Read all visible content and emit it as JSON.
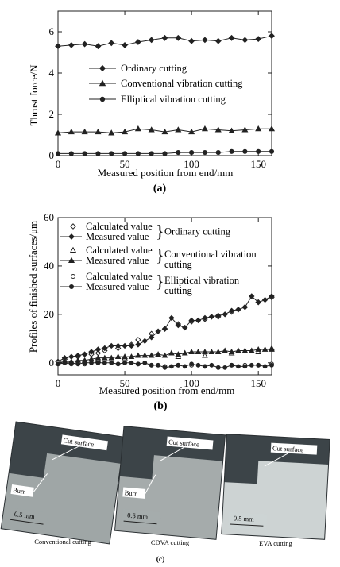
{
  "chart_data": [
    {
      "type": "line",
      "panel_label": "(a)",
      "xlabel": "Measured position from end/mm",
      "ylabel": "Thrust force/N",
      "xlim": [
        0,
        160
      ],
      "ylim": [
        0,
        7
      ],
      "xticks": [
        0,
        50,
        100,
        150
      ],
      "yticks": [
        0,
        2,
        4,
        6
      ],
      "legend_position": "inside-center",
      "series": [
        {
          "name": "Ordinary cutting",
          "marker": "diamond",
          "x": [
            0,
            10,
            20,
            30,
            40,
            50,
            60,
            70,
            80,
            90,
            100,
            110,
            120,
            130,
            140,
            150,
            160
          ],
          "y": [
            5.3,
            5.35,
            5.4,
            5.3,
            5.45,
            5.35,
            5.5,
            5.6,
            5.7,
            5.7,
            5.55,
            5.6,
            5.55,
            5.7,
            5.6,
            5.65,
            5.8
          ]
        },
        {
          "name": "Conventional vibration cutting",
          "marker": "triangle",
          "x": [
            0,
            10,
            20,
            30,
            40,
            50,
            60,
            70,
            80,
            90,
            100,
            110,
            120,
            130,
            140,
            150,
            160
          ],
          "y": [
            1.1,
            1.15,
            1.15,
            1.15,
            1.1,
            1.15,
            1.3,
            1.25,
            1.15,
            1.25,
            1.15,
            1.3,
            1.25,
            1.2,
            1.25,
            1.3,
            1.3
          ]
        },
        {
          "name": "Elliptical vibration cutting",
          "marker": "circle",
          "x": [
            0,
            10,
            20,
            30,
            40,
            50,
            60,
            70,
            80,
            90,
            100,
            110,
            120,
            130,
            140,
            150,
            160
          ],
          "y": [
            0.1,
            0.1,
            0.1,
            0.1,
            0.1,
            0.1,
            0.1,
            0.1,
            0.1,
            0.15,
            0.15,
            0.15,
            0.15,
            0.2,
            0.2,
            0.2,
            0.2
          ]
        }
      ]
    },
    {
      "type": "line",
      "panel_label": "(b)",
      "xlabel": "Measured position from end/mm",
      "ylabel": "Profiles of finished surfaces/μm",
      "xlim": [
        0,
        160
      ],
      "ylim": [
        -5,
        60
      ],
      "xticks": [
        0,
        50,
        100,
        150
      ],
      "yticks": [
        0,
        20,
        40,
        60
      ],
      "legend_position": "top-left",
      "group_labels": [
        {
          "text": "Ordinary cutting",
          "lines": [
            "Ordinary cutting"
          ]
        },
        {
          "text": "Conventional vibration cutting",
          "lines": [
            "Conventional vibration",
            "cutting"
          ]
        },
        {
          "text": "Elliptical vibration cutting",
          "lines": [
            "Elliptical vibration",
            "cutting"
          ]
        }
      ],
      "series": [
        {
          "name": "Calculated value",
          "group": 0,
          "marker": "diamond-open",
          "line": false,
          "x": [
            5,
            15,
            25,
            30,
            35,
            45,
            55,
            60,
            70,
            80,
            90,
            100,
            110,
            120,
            130,
            140,
            150,
            160
          ],
          "y": [
            1.5,
            2.5,
            3.5,
            4,
            5,
            6,
            7.5,
            9.5,
            12,
            14,
            16,
            17,
            18,
            19,
            21,
            23,
            25,
            27
          ]
        },
        {
          "name": "Measured value",
          "group": 0,
          "marker": "diamond",
          "line": true,
          "x": [
            0,
            5,
            10,
            15,
            20,
            25,
            30,
            35,
            40,
            45,
            50,
            55,
            60,
            65,
            70,
            75,
            80,
            85,
            90,
            95,
            100,
            105,
            110,
            115,
            120,
            125,
            130,
            135,
            140,
            145,
            150,
            155,
            160
          ],
          "y": [
            0.5,
            2,
            2.5,
            3,
            3.5,
            4.5,
            5.5,
            6,
            7,
            7,
            7,
            7,
            7.5,
            9,
            10.5,
            13,
            14,
            18.5,
            15.5,
            14.5,
            17.5,
            17.5,
            18.5,
            19,
            19.5,
            20,
            21.5,
            22,
            23,
            27.5,
            25,
            26,
            27.5
          ]
        },
        {
          "name": "Calculated value",
          "group": 1,
          "marker": "triangle-open",
          "line": false,
          "x": [
            10,
            30,
            50,
            70,
            90,
            110,
            130,
            150,
            160
          ],
          "y": [
            0.5,
            1,
            2,
            3,
            2.5,
            3,
            4,
            4.5,
            6
          ]
        },
        {
          "name": "Measured value",
          "group": 1,
          "marker": "triangle",
          "line": true,
          "x": [
            0,
            5,
            10,
            15,
            20,
            25,
            30,
            35,
            40,
            45,
            50,
            55,
            60,
            65,
            70,
            75,
            80,
            85,
            90,
            95,
            100,
            105,
            110,
            115,
            120,
            125,
            130,
            135,
            140,
            145,
            150,
            155,
            160
          ],
          "y": [
            0,
            0.5,
            0.5,
            1,
            1,
            1.5,
            2,
            2,
            2,
            2.5,
            2.5,
            2.5,
            3,
            3,
            3,
            3.5,
            3,
            4,
            3.5,
            4,
            4.5,
            4.5,
            4.5,
            4.5,
            4.5,
            5,
            4.5,
            5,
            5,
            5,
            5.5,
            5.5,
            5.5
          ]
        },
        {
          "name": "Calculated value",
          "group": 2,
          "marker": "circle-open",
          "line": false,
          "x": [
            0,
            10,
            20,
            30,
            40,
            50,
            60,
            70,
            80,
            90,
            100,
            110,
            120,
            130,
            140,
            150,
            160
          ],
          "y": [
            0,
            -0.5,
            -0.5,
            0,
            0,
            0,
            -0.5,
            -1,
            -1.5,
            -1,
            -1,
            -1.5,
            -2,
            -1,
            -1,
            -1,
            -0.5
          ]
        },
        {
          "name": "Measured value",
          "group": 2,
          "marker": "circle",
          "line": true,
          "x": [
            0,
            5,
            10,
            15,
            20,
            25,
            30,
            35,
            40,
            45,
            50,
            55,
            60,
            65,
            70,
            75,
            80,
            85,
            90,
            95,
            100,
            105,
            110,
            115,
            120,
            125,
            130,
            135,
            140,
            145,
            150,
            155,
            160
          ],
          "y": [
            -0.5,
            0,
            0,
            -0.5,
            0,
            0,
            0,
            0,
            0,
            -0.5,
            0,
            0,
            -0.5,
            0,
            -1,
            -1,
            -2,
            -1.5,
            -1,
            -1.5,
            -0.5,
            -1,
            -1.5,
            -1,
            -2,
            -2,
            -1,
            -1.5,
            -1.5,
            -1,
            -1,
            -1.5,
            -1
          ]
        }
      ]
    }
  ],
  "photos": {
    "panel_label": "(c)",
    "items": [
      {
        "caption": "Conventional cutting",
        "annotations": [
          "Cut surface",
          "Burr"
        ],
        "scale": "0.5 mm",
        "tone": "#9fa6a6"
      },
      {
        "caption": "CDVA cutting",
        "annotations": [
          "Cut surface",
          "Burr"
        ],
        "scale": "0.5 mm",
        "tone": "#a5abab"
      },
      {
        "caption": "EVA cutting",
        "annotations": [
          "Cut surface"
        ],
        "scale": "0.5 mm",
        "tone": "#cdd3d3"
      }
    ]
  }
}
